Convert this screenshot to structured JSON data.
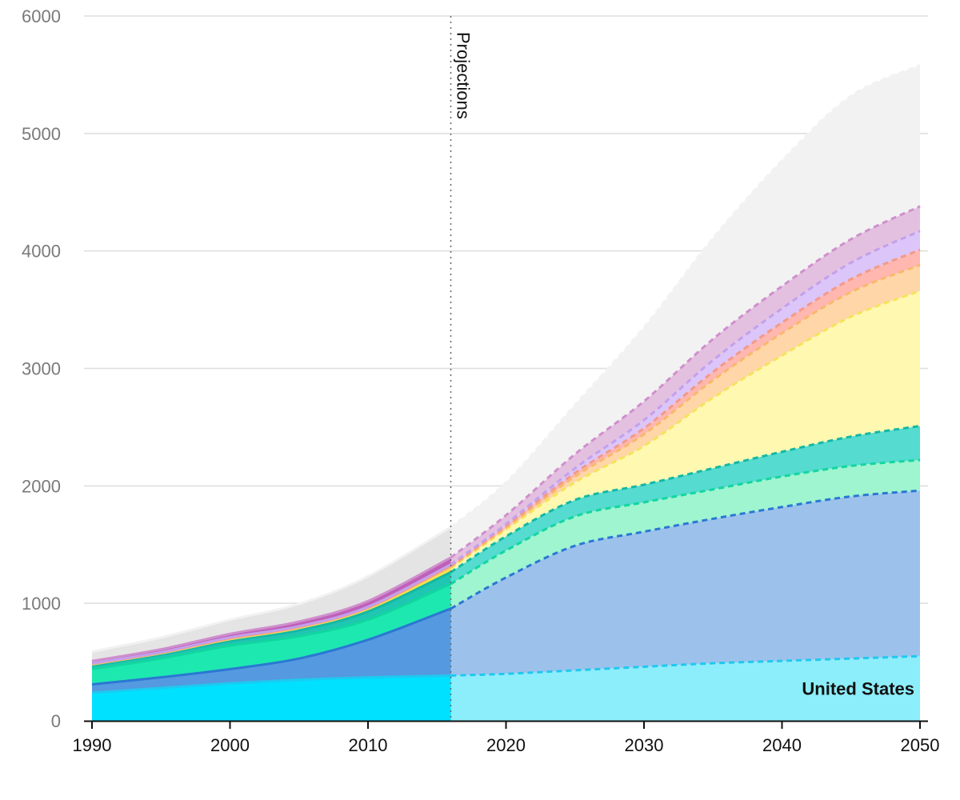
{
  "chart_data": {
    "type": "area",
    "stacked": true,
    "x": [
      1990,
      1995,
      2000,
      2005,
      2010,
      2016,
      2020,
      2025,
      2030,
      2035,
      2040,
      2045,
      2050
    ],
    "projection_start": 2016,
    "projection_label": "Projections",
    "xlim": [
      1990,
      2050
    ],
    "ylim": [
      0,
      6000
    ],
    "xticks": [
      "1990",
      "2000",
      "2010",
      "2020",
      "2030",
      "2040",
      "2050"
    ],
    "yticks": [
      "0",
      "1000",
      "2000",
      "3000",
      "4000",
      "5000",
      "6000"
    ],
    "grid": true,
    "legend": "none",
    "series": [
      {
        "name": "United States",
        "color": "#00e0ff",
        "projection_color": "#8deefb",
        "line_color": "#1fc8f0",
        "values": [
          240,
          280,
          320,
          350,
          370,
          385,
          400,
          430,
          460,
          490,
          510,
          530,
          550
        ]
      },
      {
        "color": "#5599e0",
        "projection_color": "#9cc2ec",
        "line_color": "#2a78d2",
        "values": [
          70,
          90,
          120,
          180,
          320,
          570,
          820,
          1060,
          1150,
          1230,
          1310,
          1380,
          1410
        ]
      },
      {
        "color": "#1de8b0",
        "projection_color": "#9ef5cf",
        "line_color": "#12d6a0",
        "values": [
          130,
          160,
          200,
          190,
          170,
          210,
          230,
          250,
          250,
          250,
          260,
          260,
          260
        ]
      },
      {
        "color": "#1fc6b2",
        "projection_color": "#55dbd0",
        "line_color": "#14b8a4",
        "values": [
          30,
          35,
          40,
          50,
          70,
          100,
          120,
          140,
          150,
          180,
          210,
          250,
          290
        ]
      },
      {
        "color": "#ffe43a",
        "projection_color": "#fff8b0",
        "line_color": "#f5e35a",
        "values": [
          10,
          10,
          15,
          20,
          25,
          35,
          60,
          150,
          330,
          600,
          820,
          1020,
          1150
        ]
      },
      {
        "color": "#ffbf70",
        "projection_color": "#ffd6a8",
        "line_color": "#f8b86a",
        "values": [
          3,
          3,
          5,
          5,
          5,
          10,
          15,
          50,
          100,
          150,
          190,
          210,
          220
        ]
      },
      {
        "color": "#ff8f8f",
        "projection_color": "#ffb7b0",
        "line_color": "#f29a88",
        "values": [
          3,
          3,
          5,
          5,
          5,
          10,
          15,
          30,
          50,
          70,
          90,
          110,
          130
        ]
      },
      {
        "color": "#c7a3f0",
        "projection_color": "#dcc5f8",
        "line_color": "#c3a0ec",
        "values": [
          3,
          3,
          5,
          5,
          5,
          10,
          15,
          40,
          70,
          100,
          120,
          140,
          160
        ]
      },
      {
        "color": "#c060b8",
        "projection_color": "#e3c0e0",
        "line_color": "#cf8fcc",
        "values": [
          20,
          25,
          30,
          40,
          50,
          60,
          75,
          120,
          160,
          180,
          190,
          200,
          210
        ]
      },
      {
        "color": "#e4e4e4",
        "projection_color": "#f2f2f2",
        "line_color": "#f2f2f2",
        "values": [
          80,
          100,
          120,
          150,
          210,
          260,
          280,
          420,
          630,
          860,
          1070,
          1220,
          1200
        ]
      }
    ]
  }
}
